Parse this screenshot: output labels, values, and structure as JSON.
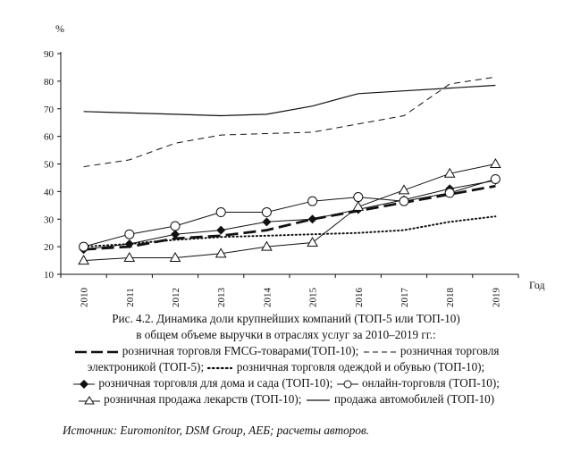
{
  "chart_data": {
    "type": "line",
    "ylabel": "%",
    "xlabel": "Год",
    "ylim": [
      10,
      90
    ],
    "yticks": [
      10,
      20,
      30,
      40,
      50,
      60,
      70,
      80,
      90
    ],
    "categories": [
      "2010",
      "2011",
      "2012",
      "2013",
      "2014",
      "2015",
      "2016",
      "2017",
      "2018",
      "2019"
    ],
    "grid": false,
    "series": [
      {
        "key": "fmcg",
        "name": "розничная торговля FMCG-товарами(ТОП-10);",
        "style": "long-dash-bold",
        "values": [
          19,
          20,
          23,
          24,
          26,
          30,
          33,
          36,
          39,
          42
        ]
      },
      {
        "key": "electronics",
        "name": "розничная торговля электроникой (ТОП-5);",
        "style": "dashed",
        "values": [
          49,
          51.5,
          57.5,
          60.5,
          61,
          61.5,
          64.5,
          67.5,
          79,
          81.5
        ]
      },
      {
        "key": "clothing",
        "name": "розничная торговля одеждой и обувью (ТОП-10);",
        "style": "dotted",
        "values": [
          20,
          21,
          22.5,
          23.5,
          24,
          24.5,
          25,
          26,
          29,
          31
        ]
      },
      {
        "key": "home",
        "name": "розничная торговля для дома и сада (ТОП-10);",
        "style": "diamond",
        "values": [
          19,
          21,
          24.5,
          26,
          29,
          30,
          33.5,
          37,
          41,
          44
        ]
      },
      {
        "key": "online",
        "name": "онлайн-торговля (ТОП-10);",
        "style": "circle",
        "values": [
          20,
          24.5,
          27.5,
          32.5,
          32.5,
          36.5,
          38,
          36.5,
          39.5,
          44.5
        ]
      },
      {
        "key": "pharma",
        "name": "розничная продажа лекарств (ТОП-10);",
        "style": "triangle",
        "values": [
          15,
          16,
          16,
          17.5,
          20,
          21.5,
          34.5,
          40.5,
          46.5,
          50
        ]
      },
      {
        "key": "auto",
        "name": "продажа автомобилей (ТОП-10)",
        "style": "solid",
        "values": [
          69,
          68.5,
          68,
          67.5,
          68,
          71,
          75.5,
          76.5,
          77.5,
          78.5
        ]
      }
    ]
  },
  "caption": {
    "title_line1": "Рис. 4.2. Динамика доли крупнейших компаний (ТОП-5 или ТОП-10)",
    "title_line2": "в общем объеме выручки в отраслях услуг за 2010–2019 гг.:",
    "legend": {
      "fmcg": "розничная торговля FMCG-товарами(ТОП-10);",
      "electronics_a": "розничная торговля",
      "electronics_b": "электроникой (ТОП-5);",
      "clothing": "розничная торговля одеждой и обувью (ТОП-10);",
      "home": "розничная торговля для дома и сада (ТОП-10);",
      "online": "онлайн-торговля (ТОП-10);",
      "pharma": "розничная продажа лекарств (ТОП-10);",
      "auto": "продажа автомобилей (ТОП-10)"
    }
  },
  "source": "Источник: Euromonitor, DSM Group, АЕБ; расчеты авторов."
}
